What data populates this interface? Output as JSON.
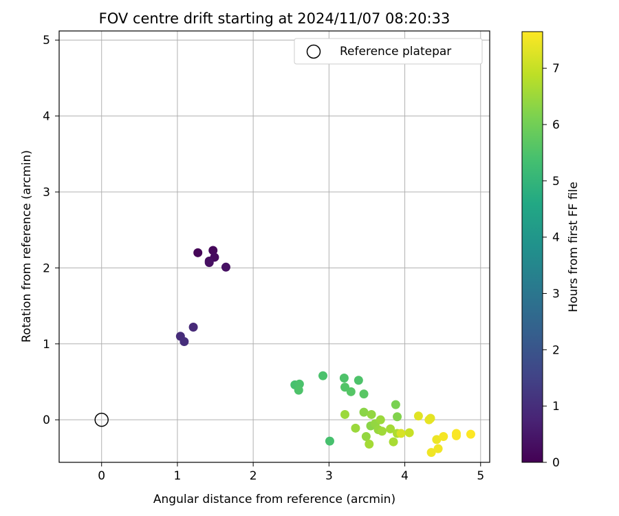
{
  "chart_data": {
    "type": "scatter",
    "title": "FOV centre drift starting at 2024/11/07 08:20:33",
    "xlabel": "Angular distance from reference (arcmin)",
    "ylabel": "Rotation from reference (arcmin)",
    "xlim": [
      -0.56,
      5.12
    ],
    "ylim": [
      -0.56,
      5.12
    ],
    "xticks": [
      "0",
      "1",
      "2",
      "3",
      "4",
      "5"
    ],
    "yticks": [
      "0",
      "1",
      "2",
      "3",
      "4",
      "5"
    ],
    "grid": true,
    "legend": {
      "placement": "top-right",
      "entries": [
        "Reference platepar"
      ]
    },
    "reference_point": {
      "x": 0,
      "y": 0
    },
    "colorbar": {
      "label": "Hours from first FF file",
      "colormap": "viridis",
      "range": [
        0,
        7.65
      ],
      "ticks": [
        "0",
        "1",
        "2",
        "3",
        "4",
        "5",
        "6",
        "7"
      ]
    },
    "points": [
      {
        "x": 1.27,
        "y": 2.2,
        "c": 0.1
      },
      {
        "x": 1.47,
        "y": 2.23,
        "c": 0.15
      },
      {
        "x": 1.49,
        "y": 2.14,
        "c": 0.2
      },
      {
        "x": 1.42,
        "y": 2.09,
        "c": 0.25
      },
      {
        "x": 1.42,
        "y": 2.07,
        "c": 0.3
      },
      {
        "x": 1.64,
        "y": 2.01,
        "c": 0.35
      },
      {
        "x": 1.21,
        "y": 1.22,
        "c": 0.9
      },
      {
        "x": 1.04,
        "y": 1.1,
        "c": 0.95
      },
      {
        "x": 1.09,
        "y": 1.03,
        "c": 1.0
      },
      {
        "x": 2.55,
        "y": 0.46,
        "c": 5.4
      },
      {
        "x": 2.61,
        "y": 0.47,
        "c": 5.45
      },
      {
        "x": 2.6,
        "y": 0.39,
        "c": 5.5
      },
      {
        "x": 2.92,
        "y": 0.58,
        "c": 5.45
      },
      {
        "x": 3.2,
        "y": 0.55,
        "c": 5.5
      },
      {
        "x": 3.39,
        "y": 0.52,
        "c": 5.5
      },
      {
        "x": 3.21,
        "y": 0.43,
        "c": 5.55
      },
      {
        "x": 3.29,
        "y": 0.37,
        "c": 5.6
      },
      {
        "x": 3.46,
        "y": 0.34,
        "c": 5.65
      },
      {
        "x": 3.01,
        "y": -0.28,
        "c": 5.4
      },
      {
        "x": 3.21,
        "y": 0.07,
        "c": 6.5
      },
      {
        "x": 3.46,
        "y": 0.1,
        "c": 6.3
      },
      {
        "x": 3.56,
        "y": 0.07,
        "c": 6.4
      },
      {
        "x": 3.88,
        "y": 0.2,
        "c": 6.1
      },
      {
        "x": 3.9,
        "y": 0.04,
        "c": 6.2
      },
      {
        "x": 3.35,
        "y": -0.11,
        "c": 6.5
      },
      {
        "x": 3.49,
        "y": -0.22,
        "c": 6.4
      },
      {
        "x": 3.53,
        "y": -0.32,
        "c": 6.6
      },
      {
        "x": 3.55,
        "y": -0.08,
        "c": 6.3
      },
      {
        "x": 3.61,
        "y": -0.05,
        "c": 6.4
      },
      {
        "x": 3.65,
        "y": -0.13,
        "c": 6.45
      },
      {
        "x": 3.68,
        "y": 0.0,
        "c": 6.5
      },
      {
        "x": 3.7,
        "y": -0.15,
        "c": 6.55
      },
      {
        "x": 3.81,
        "y": -0.12,
        "c": 6.6
      },
      {
        "x": 3.85,
        "y": -0.29,
        "c": 6.65
      },
      {
        "x": 3.9,
        "y": -0.18,
        "c": 6.7
      },
      {
        "x": 3.95,
        "y": -0.18,
        "c": 7.2
      },
      {
        "x": 4.06,
        "y": -0.17,
        "c": 7.0
      },
      {
        "x": 4.18,
        "y": 0.05,
        "c": 7.3
      },
      {
        "x": 4.32,
        "y": 0.0,
        "c": 7.4
      },
      {
        "x": 4.34,
        "y": 0.02,
        "c": 7.35
      },
      {
        "x": 4.35,
        "y": -0.43,
        "c": 7.5
      },
      {
        "x": 4.42,
        "y": -0.26,
        "c": 7.45
      },
      {
        "x": 4.44,
        "y": -0.38,
        "c": 7.5
      },
      {
        "x": 4.51,
        "y": -0.22,
        "c": 7.55
      },
      {
        "x": 4.68,
        "y": -0.18,
        "c": 7.6
      },
      {
        "x": 4.68,
        "y": -0.21,
        "c": 7.6
      },
      {
        "x": 4.87,
        "y": -0.19,
        "c": 7.65
      }
    ]
  }
}
